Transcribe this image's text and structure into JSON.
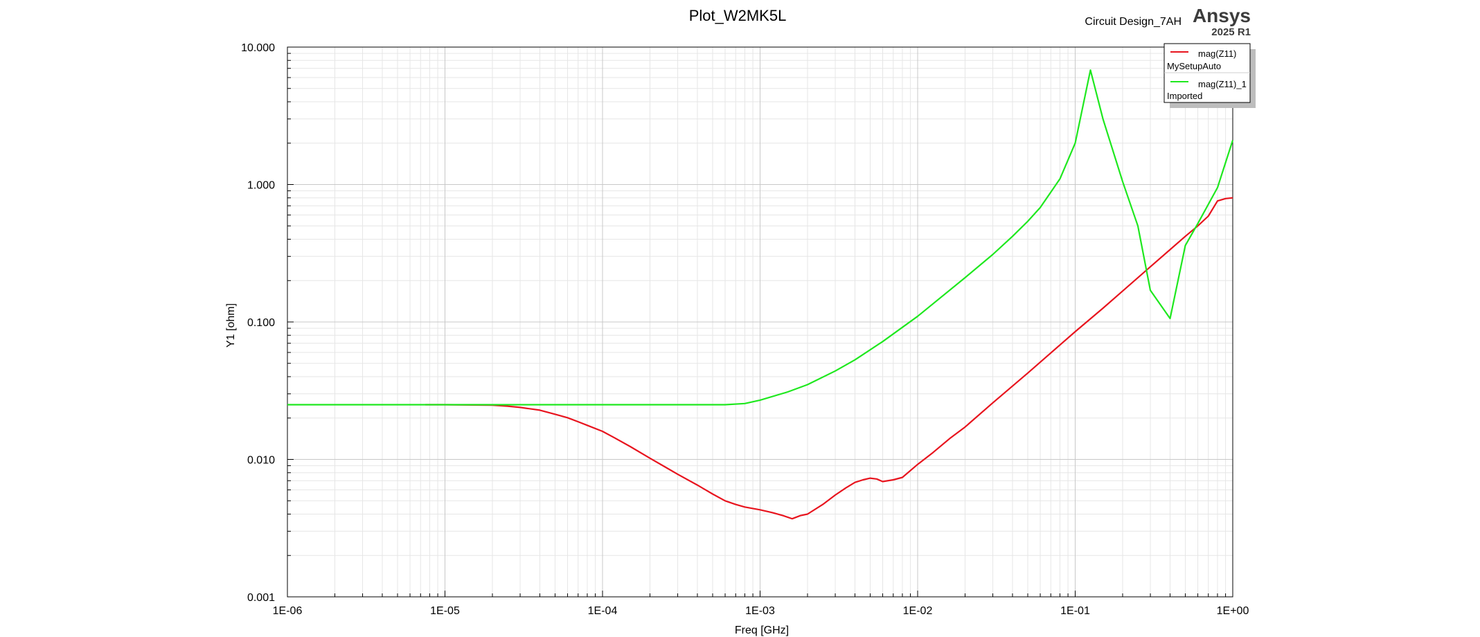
{
  "header": {
    "design_name": "Circuit Design_7AH",
    "brand": "Ansys",
    "version": "2025 R1"
  },
  "chart_data": {
    "type": "line",
    "title": "Plot_W2MK5L",
    "xlabel": "Freq [GHz]",
    "ylabel": "Y1 [ohm]",
    "x_scale": "log",
    "y_scale": "log",
    "xlim": [
      1e-06,
      1
    ],
    "ylim": [
      0.001,
      10
    ],
    "x_tick_values": [
      1e-06,
      1e-05,
      0.0001,
      0.001,
      0.01,
      0.1,
      1
    ],
    "x_tick_labels": [
      "1E-06",
      "1E-05",
      "1E-04",
      "1E-03",
      "1E-02",
      "1E-01",
      "1E+00"
    ],
    "y_tick_values": [
      0.001,
      0.01,
      0.1,
      1,
      10
    ],
    "y_tick_labels": [
      "0.001",
      "0.010",
      "0.100",
      "1.000",
      "10.000"
    ],
    "grid": true,
    "legend_position": "top-right",
    "series": [
      {
        "name": "mag(Z11)",
        "sub": "MySetupAuto",
        "color": "#e8141e",
        "x": [
          7.5e-06,
          1e-05,
          1.5e-05,
          2e-05,
          2.5e-05,
          3e-05,
          4e-05,
          5e-05,
          6e-05,
          7e-05,
          8e-05,
          0.0001,
          0.00012,
          0.00015,
          0.0002,
          0.00025,
          0.0003,
          0.0004,
          0.0005,
          0.0006,
          0.0007,
          0.0008,
          0.001,
          0.0012,
          0.0014,
          0.0016,
          0.0018,
          0.002,
          0.0025,
          0.003,
          0.0035,
          0.004,
          0.0045,
          0.005,
          0.0055,
          0.006,
          0.007,
          0.008,
          0.01,
          0.0125,
          0.016,
          0.02,
          0.03,
          0.05,
          0.08,
          0.1,
          0.15,
          0.2,
          0.3,
          0.4,
          0.5,
          0.6,
          0.7,
          0.8,
          0.9,
          1.0
        ],
        "y": [
          0.025,
          0.025,
          0.0249,
          0.0248,
          0.0244,
          0.0239,
          0.0228,
          0.0213,
          0.0201,
          0.0188,
          0.0177,
          0.016,
          0.0143,
          0.0124,
          0.0102,
          0.0088,
          0.0078,
          0.0065,
          0.0056,
          0.005,
          0.0047,
          0.0045,
          0.0043,
          0.0041,
          0.0039,
          0.0037,
          0.0039,
          0.004,
          0.0047,
          0.0055,
          0.0062,
          0.0068,
          0.0071,
          0.0073,
          0.0072,
          0.0069,
          0.0071,
          0.0074,
          0.0092,
          0.0112,
          0.0142,
          0.0172,
          0.0258,
          0.0425,
          0.068,
          0.085,
          0.126,
          0.168,
          0.252,
          0.336,
          0.42,
          0.5,
          0.59,
          0.76,
          0.79,
          0.8
        ]
      },
      {
        "name": "mag(Z11)_1",
        "sub": "Imported",
        "color": "#1ee81e",
        "x": [
          1e-06,
          1e-05,
          0.0001,
          0.0003,
          0.0006,
          0.0008,
          0.001,
          0.0015,
          0.002,
          0.003,
          0.004,
          0.006,
          0.01,
          0.02,
          0.03,
          0.04,
          0.05,
          0.06,
          0.08,
          0.1,
          0.125,
          0.15,
          0.2,
          0.25,
          0.3,
          0.4,
          0.5,
          0.6,
          0.8,
          1.0
        ],
        "y": [
          0.025,
          0.025,
          0.025,
          0.025,
          0.025,
          0.0255,
          0.027,
          0.031,
          0.035,
          0.044,
          0.053,
          0.072,
          0.11,
          0.21,
          0.31,
          0.42,
          0.54,
          0.68,
          1.1,
          2.0,
          6.8,
          3.0,
          1.05,
          0.5,
          0.17,
          0.106,
          0.36,
          0.52,
          0.95,
          2.1
        ]
      }
    ]
  }
}
